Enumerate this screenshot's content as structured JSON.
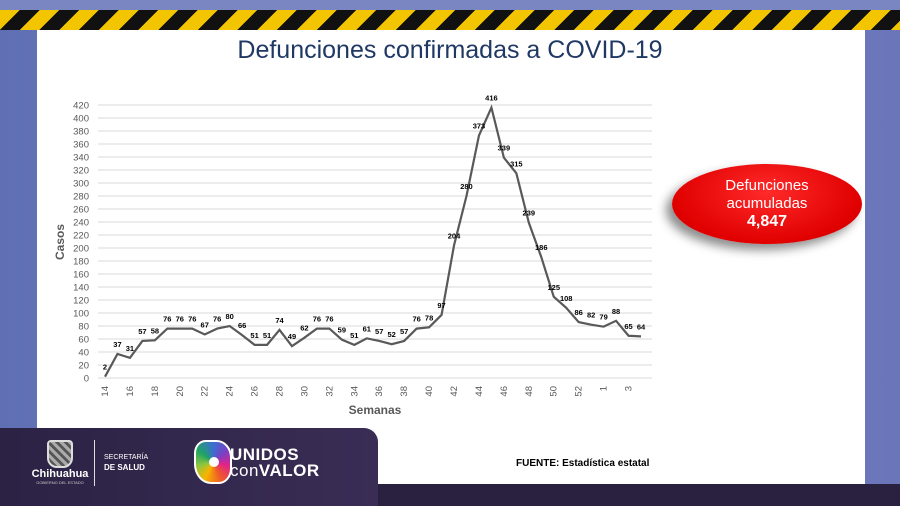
{
  "slide": {
    "title": "Defunciones confirmadas a COVID-19",
    "source": "FUENTE: Estadística estatal",
    "badge": {
      "line1": "Defunciones",
      "line2": "acumuladas",
      "value": "4,847",
      "color": "#e00000"
    },
    "logos": {
      "chihuahua": "Chihuahua",
      "chihuahua_sub": "GOBIERNO DEL ESTADO",
      "secretaria_line1": "SECRETARÍA",
      "secretaria_line2": "DE SALUD",
      "unidos_line1": "UNIDOS",
      "unidos_con": "con",
      "unidos_valor": "VALOR"
    }
  },
  "chart_data": {
    "type": "line",
    "xlabel": "Semanas",
    "ylabel": "Casos",
    "ylim": [
      0,
      420
    ],
    "ytick_step": 20,
    "grid": true,
    "line_color": "#595959",
    "x": [
      "14",
      "15",
      "16",
      "17",
      "18",
      "19",
      "20",
      "21",
      "22",
      "23",
      "24",
      "25",
      "26",
      "27",
      "28",
      "29",
      "30",
      "31",
      "32",
      "33",
      "34",
      "35",
      "36",
      "37",
      "38",
      "39",
      "40",
      "41",
      "42",
      "43",
      "44",
      "45",
      "46",
      "47",
      "48",
      "49",
      "50",
      "51",
      "52",
      "53",
      "1",
      "2",
      "3",
      "4"
    ],
    "xtick_labels": [
      "14",
      "16",
      "18",
      "20",
      "22",
      "24",
      "26",
      "28",
      "30",
      "32",
      "34",
      "36",
      "38",
      "40",
      "42",
      "44",
      "46",
      "48",
      "50",
      "52",
      "1",
      "3"
    ],
    "values": [
      2,
      37,
      31,
      57,
      58,
      76,
      76,
      76,
      67,
      76,
      80,
      66,
      51,
      51,
      74,
      49,
      62,
      76,
      76,
      59,
      51,
      61,
      57,
      52,
      57,
      76,
      78,
      97,
      204,
      280,
      373,
      416,
      339,
      315,
      239,
      186,
      125,
      108,
      86,
      82,
      79,
      88,
      65,
      64
    ]
  }
}
